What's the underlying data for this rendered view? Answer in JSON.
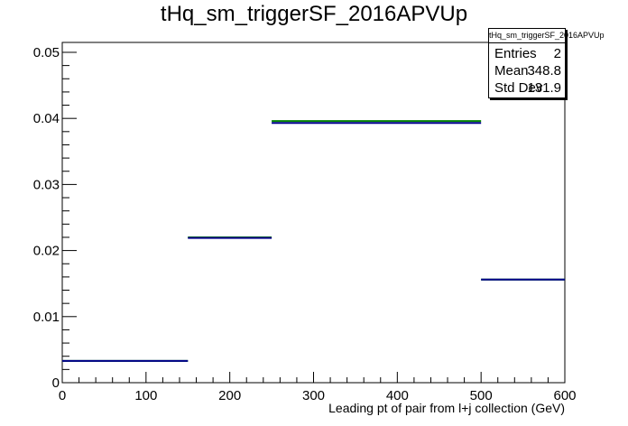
{
  "chart_data": {
    "type": "histogram",
    "title": "tHq_sm_triggerSF_2016APVUp",
    "xlabel": "Leading pt of pair from l+j collection (GeV)",
    "ylabel": "",
    "xlim": [
      0,
      600
    ],
    "ylim": [
      0,
      0.0515
    ],
    "x_ticks": [
      "0",
      "100",
      "200",
      "300",
      "400",
      "500",
      "600"
    ],
    "y_ticks": [
      "0",
      "0.01",
      "0.02",
      "0.03",
      "0.04",
      "0.05"
    ],
    "bins": [
      {
        "x_low": 0,
        "x_high": 150,
        "value": 0.0033,
        "variation": 0.0033
      },
      {
        "x_low": 150,
        "x_high": 250,
        "value": 0.0219,
        "variation": 0.022
      },
      {
        "x_low": 250,
        "x_high": 500,
        "value": 0.0393,
        "variation": 0.0396
      },
      {
        "x_low": 500,
        "x_high": 600,
        "value": 0.0156,
        "variation": 0.0156
      }
    ],
    "colors": {
      "nominal": "#00008b",
      "variation": "#008000",
      "frame": "#000000"
    },
    "grid": false
  },
  "stats": {
    "title": "tHq_sm_triggerSF_2016APVUp",
    "entries_label": "Entries",
    "entries": "2",
    "mean_label": "Mean",
    "mean": "348.8",
    "std_label": "Std Dev",
    "std": "131.9"
  }
}
